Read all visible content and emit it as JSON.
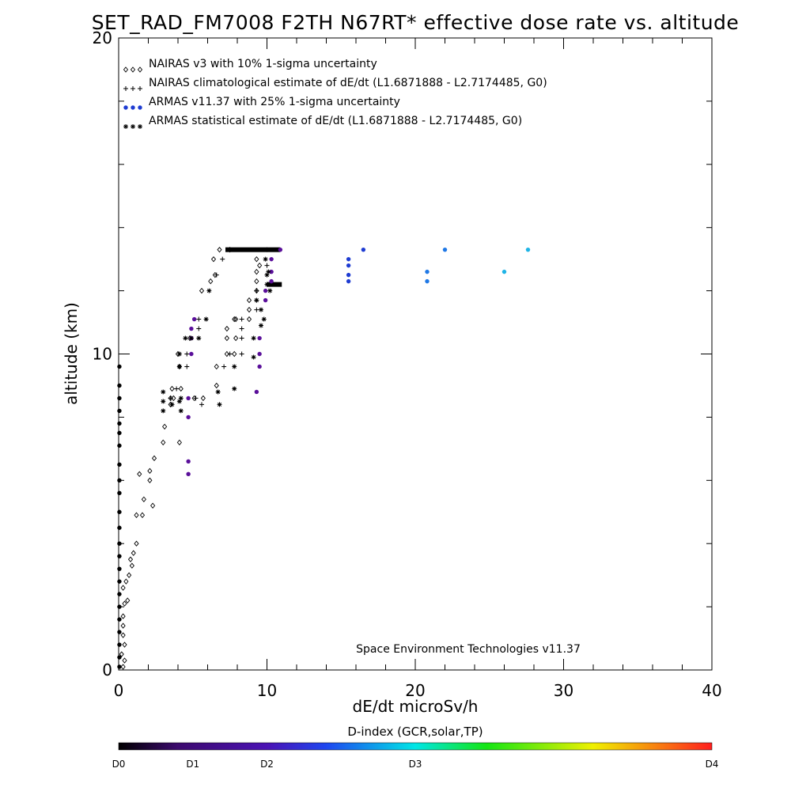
{
  "chart_data": {
    "type": "scatter",
    "title": "SET_RAD_FM7008  F2TH N67RT* effective dose rate vs. altitude",
    "xlabel": "dE/dt microSv/h",
    "ylabel": "altitude (km)",
    "xlim": [
      0,
      40
    ],
    "ylim": [
      0,
      20
    ],
    "x_ticks": [
      "0",
      "10",
      "20",
      "30",
      "40"
    ],
    "y_ticks": [
      "0",
      "10",
      "20"
    ],
    "legend_position": "top-left",
    "credit": "Space Environment Technologies v11.37",
    "legend": [
      {
        "symbol": "◇◇◇",
        "label": "NAIRAS v3 with 10% 1-sigma uncertainty"
      },
      {
        "symbol": "+++",
        "label": "NAIRAS climatological estimate of dE/dt (L1.6871888 - L2.7174485, G0)"
      },
      {
        "symbol": "●●●",
        "label": "ARMAS v11.37 with 25% 1-sigma uncertainty"
      },
      {
        "symbol": "***",
        "label": "ARMAS statistical estimate of dE/dt (L1.6871888 - L2.7174485, G0)"
      }
    ],
    "colorbar": {
      "title": "D-index (GCR,solar,TP)",
      "labels": [
        "D0",
        "D1",
        "D2",
        "D3",
        "D4"
      ]
    },
    "colors": {
      "armas_purple": "#5a0f9a",
      "armas_blue": "#1e3cd2",
      "armas_midblue": "#1f78e6",
      "armas_cyan": "#1fb4e6"
    },
    "series": [
      {
        "name": "NAIRAS v3 with 10% 1-sigma uncertainty",
        "marker": "diamond",
        "points": [
          [
            0.3,
            0.1
          ],
          [
            0.4,
            0.3
          ],
          [
            0.2,
            0.5
          ],
          [
            0.4,
            0.8
          ],
          [
            0.3,
            1.1
          ],
          [
            0.3,
            1.4
          ],
          [
            0.3,
            1.7
          ],
          [
            0.4,
            2.1
          ],
          [
            0.6,
            2.2
          ],
          [
            0.3,
            2.6
          ],
          [
            0.5,
            2.8
          ],
          [
            0.7,
            3.0
          ],
          [
            0.9,
            3.3
          ],
          [
            0.8,
            3.5
          ],
          [
            1.0,
            3.7
          ],
          [
            1.2,
            4.0
          ],
          [
            1.2,
            4.9
          ],
          [
            1.6,
            4.9
          ],
          [
            2.3,
            5.2
          ],
          [
            1.7,
            5.4
          ],
          [
            2.1,
            6.0
          ],
          [
            2.1,
            6.3
          ],
          [
            2.4,
            6.7
          ],
          [
            1.4,
            6.2
          ],
          [
            3.0,
            7.2
          ],
          [
            4.1,
            7.2
          ],
          [
            3.1,
            7.7
          ],
          [
            3.5,
            8.4
          ],
          [
            3.5,
            8.6
          ],
          [
            3.6,
            8.9
          ],
          [
            4.2,
            8.9
          ],
          [
            4.1,
            9.6
          ],
          [
            4.0,
            10.0
          ],
          [
            4.8,
            10.5
          ],
          [
            5.6,
            12.0
          ],
          [
            6.2,
            12.3
          ],
          [
            6.5,
            12.5
          ],
          [
            6.4,
            13.0
          ],
          [
            6.8,
            13.3
          ],
          [
            3.7,
            8.6
          ],
          [
            5.1,
            8.6
          ],
          [
            5.7,
            8.6
          ],
          [
            6.6,
            9.0
          ],
          [
            6.6,
            9.6
          ],
          [
            7.3,
            10.0
          ],
          [
            7.3,
            10.5
          ],
          [
            7.3,
            10.8
          ],
          [
            7.8,
            10.0
          ],
          [
            7.8,
            11.1
          ],
          [
            8.8,
            11.1
          ],
          [
            8.8,
            11.4
          ],
          [
            8.8,
            11.7
          ],
          [
            9.3,
            12.0
          ],
          [
            9.3,
            12.3
          ],
          [
            9.3,
            12.6
          ],
          [
            9.3,
            13.0
          ],
          [
            7.9,
            10.5
          ],
          [
            7.9,
            11.1
          ],
          [
            9.5,
            12.8
          ],
          [
            7.5,
            13.3
          ]
        ]
      },
      {
        "name": "NAIRAS climatological estimate of dE/dt (L1.6871888 - L2.7174485, G0)",
        "marker": "plus",
        "points": [
          [
            4.1,
            9.6
          ],
          [
            4.6,
            10.0
          ],
          [
            4.6,
            9.6
          ],
          [
            5.4,
            10.8
          ],
          [
            5.4,
            11.1
          ],
          [
            3.5,
            8.6
          ],
          [
            3.9,
            8.9
          ],
          [
            5.2,
            8.6
          ],
          [
            5.6,
            8.4
          ],
          [
            6.6,
            12.5
          ],
          [
            7.1,
            9.6
          ],
          [
            7.5,
            10.0
          ],
          [
            8.3,
            10.0
          ],
          [
            8.3,
            10.8
          ],
          [
            8.3,
            11.1
          ],
          [
            8.3,
            10.5
          ],
          [
            9.3,
            11.7
          ],
          [
            9.3,
            11.4
          ],
          [
            9.3,
            12.0
          ],
          [
            7.0,
            13.0
          ],
          [
            10.0,
            12.8
          ]
        ]
      },
      {
        "name": "ARMAS v11.37 with 25% 1-sigma uncertainty",
        "marker": "dot",
        "points": [
          {
            "x": 0.05,
            "y": 9.6,
            "c": "black"
          },
          {
            "x": 0.05,
            "y": 9.0,
            "c": "black"
          },
          {
            "x": 0.05,
            "y": 8.6,
            "c": "black"
          },
          {
            "x": 0.05,
            "y": 8.2,
            "c": "black"
          },
          {
            "x": 0.05,
            "y": 7.8,
            "c": "black"
          },
          {
            "x": 0.05,
            "y": 7.5,
            "c": "black"
          },
          {
            "x": 0.05,
            "y": 7.1,
            "c": "black"
          },
          {
            "x": 0.05,
            "y": 6.5,
            "c": "black"
          },
          {
            "x": 0.05,
            "y": 6.0,
            "c": "black"
          },
          {
            "x": 0.05,
            "y": 5.6,
            "c": "black"
          },
          {
            "x": 0.05,
            "y": 5.0,
            "c": "black"
          },
          {
            "x": 0.05,
            "y": 4.5,
            "c": "black"
          },
          {
            "x": 0.05,
            "y": 4.0,
            "c": "black"
          },
          {
            "x": 0.05,
            "y": 3.6,
            "c": "black"
          },
          {
            "x": 0.05,
            "y": 3.2,
            "c": "black"
          },
          {
            "x": 0.05,
            "y": 2.8,
            "c": "black"
          },
          {
            "x": 0.05,
            "y": 2.4,
            "c": "black"
          },
          {
            "x": 0.05,
            "y": 2.0,
            "c": "black"
          },
          {
            "x": 0.05,
            "y": 1.6,
            "c": "black"
          },
          {
            "x": 0.05,
            "y": 1.2,
            "c": "black"
          },
          {
            "x": 0.05,
            "y": 0.8,
            "c": "black"
          },
          {
            "x": 0.05,
            "y": 0.4,
            "c": "black"
          },
          {
            "x": 0.05,
            "y": 0.1,
            "c": "black"
          },
          {
            "x": 4.7,
            "y": 6.2,
            "c": "purple"
          },
          {
            "x": 4.7,
            "y": 6.6,
            "c": "purple"
          },
          {
            "x": 4.7,
            "y": 8.0,
            "c": "purple"
          },
          {
            "x": 4.7,
            "y": 8.6,
            "c": "purple"
          },
          {
            "x": 4.9,
            "y": 10.0,
            "c": "purple"
          },
          {
            "x": 4.9,
            "y": 10.5,
            "c": "purple"
          },
          {
            "x": 4.9,
            "y": 10.8,
            "c": "purple"
          },
          {
            "x": 5.1,
            "y": 11.1,
            "c": "purple"
          },
          {
            "x": 9.3,
            "y": 8.8,
            "c": "purple"
          },
          {
            "x": 9.5,
            "y": 9.6,
            "c": "purple"
          },
          {
            "x": 9.5,
            "y": 10.0,
            "c": "purple"
          },
          {
            "x": 9.5,
            "y": 10.5,
            "c": "purple"
          },
          {
            "x": 9.9,
            "y": 11.7,
            "c": "purple"
          },
          {
            "x": 9.9,
            "y": 12.0,
            "c": "purple"
          },
          {
            "x": 10.3,
            "y": 12.3,
            "c": "purple"
          },
          {
            "x": 10.3,
            "y": 12.6,
            "c": "purple"
          },
          {
            "x": 10.3,
            "y": 13.0,
            "c": "purple"
          },
          {
            "x": 10.9,
            "y": 13.3,
            "c": "purple"
          },
          {
            "x": 15.5,
            "y": 12.3,
            "c": "blue"
          },
          {
            "x": 15.5,
            "y": 12.5,
            "c": "blue"
          },
          {
            "x": 15.5,
            "y": 12.8,
            "c": "blue"
          },
          {
            "x": 15.5,
            "y": 13.0,
            "c": "blue"
          },
          {
            "x": 16.5,
            "y": 13.3,
            "c": "blue"
          },
          {
            "x": 20.8,
            "y": 12.6,
            "c": "midblue"
          },
          {
            "x": 20.8,
            "y": 12.3,
            "c": "midblue"
          },
          {
            "x": 22.0,
            "y": 13.3,
            "c": "midblue"
          },
          {
            "x": 26.0,
            "y": 12.6,
            "c": "cyan"
          },
          {
            "x": 27.6,
            "y": 13.3,
            "c": "cyan"
          }
        ]
      },
      {
        "name": "ARMAS statistical estimate of dE/dt (L1.6871888 - L2.7174485, G0)",
        "marker": "asterisk",
        "points": [
          [
            3.0,
            8.8
          ],
          [
            3.0,
            8.5
          ],
          [
            3.0,
            8.2
          ],
          [
            3.6,
            8.4
          ],
          [
            4.2,
            8.6
          ],
          [
            4.2,
            8.2
          ],
          [
            4.1,
            8.5
          ],
          [
            4.1,
            10.0
          ],
          [
            4.1,
            9.6
          ],
          [
            4.5,
            10.5
          ],
          [
            4.9,
            10.5
          ],
          [
            5.4,
            10.5
          ],
          [
            5.9,
            11.1
          ],
          [
            6.1,
            12.0
          ],
          [
            6.7,
            8.8
          ],
          [
            6.8,
            8.4
          ],
          [
            7.8,
            9.6
          ],
          [
            7.8,
            8.9
          ],
          [
            9.1,
            9.9
          ],
          [
            9.1,
            10.5
          ],
          [
            9.6,
            10.9
          ],
          [
            9.6,
            11.4
          ],
          [
            9.8,
            11.1
          ],
          [
            10.2,
            12.0
          ],
          [
            10.0,
            12.5
          ],
          [
            9.9,
            13.0
          ],
          [
            10.1,
            12.6
          ],
          [
            10.0,
            12.2
          ],
          [
            9.3,
            11.7
          ],
          [
            10.0,
            13.3
          ]
        ]
      }
    ],
    "bands": [
      {
        "x_from": 7.2,
        "x_to": 10.9,
        "y": 13.3
      },
      {
        "x_from": 10.0,
        "x_to": 11.0,
        "y": 12.2
      }
    ]
  }
}
